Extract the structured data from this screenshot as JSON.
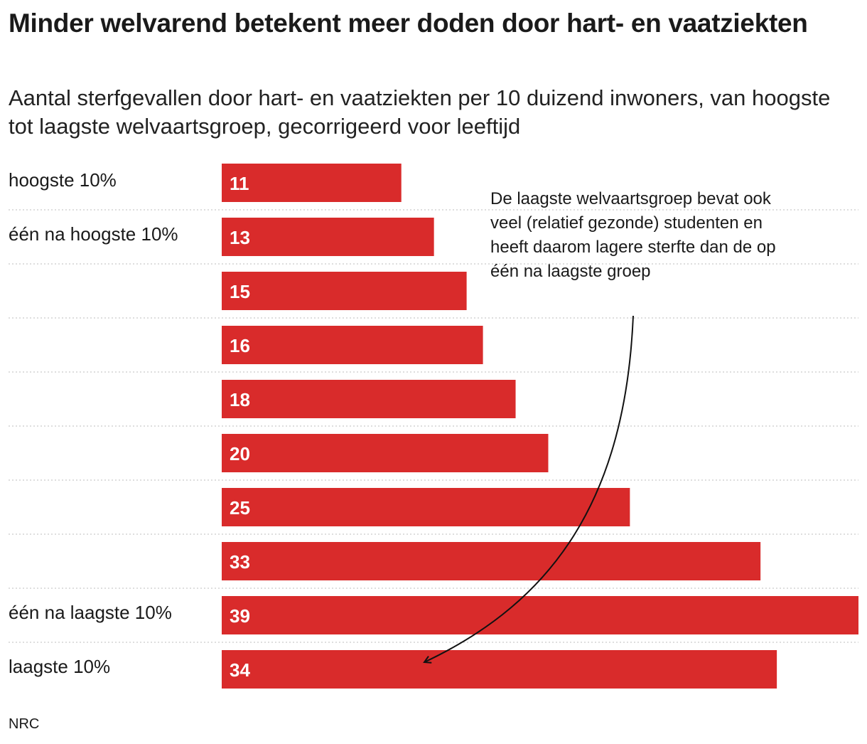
{
  "title": "Minder welvarend betekent meer doden door hart- en vaatziekten",
  "subtitle": "Aantal sterfgevallen door hart- en vaatziekten per 10 duizend inwoners, van hoogste tot laagste welvaartsgroep, gecorrigeerd voor leeftijd",
  "annotation": "De laagste welvaartsgroep bevat ook veel (relatief gezonde) studenten en heeft daarom lagere sterfte dan de op één na laagste groep",
  "source": "NRC",
  "chart_data": {
    "type": "bar",
    "orientation": "horizontal",
    "categories": [
      "hoogste 10%",
      "één na hoogste 10%",
      "",
      "",
      "",
      "",
      "",
      "",
      "één na laagste 10%",
      "laagste 10%"
    ],
    "values": [
      11,
      13,
      15,
      16,
      18,
      20,
      25,
      33,
      39,
      34
    ],
    "title": "Minder welvarend betekent meer doden door hart- en vaatziekten",
    "xlim": [
      0,
      39
    ],
    "grid": "dotted row separators",
    "bar_color": "#d92b2b",
    "value_label_color": "#ffffff"
  }
}
